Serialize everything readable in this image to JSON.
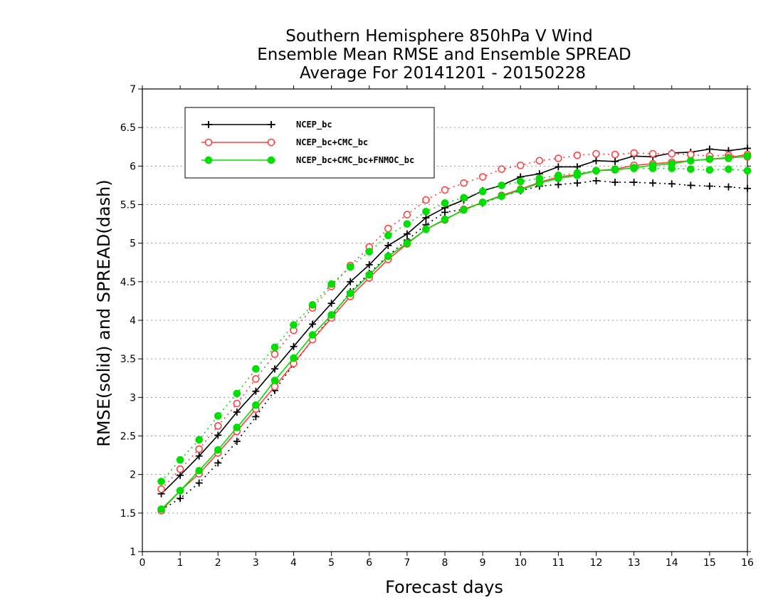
{
  "chart_data": {
    "type": "line",
    "title_lines": [
      "Southern Hemisphere 850hPa V Wind",
      "Ensemble Mean RMSE and Ensemble SPREAD",
      "Average For 20141201 - 20150228"
    ],
    "xlabel": "Forecast days",
    "ylabel": "RMSE(solid) and SPREAD(dash)",
    "xlim": [
      0,
      16
    ],
    "ylim": [
      1,
      7
    ],
    "xticks": [
      "0",
      "1",
      "2",
      "3",
      "4",
      "5",
      "6",
      "7",
      "8",
      "9",
      "10",
      "11",
      "12",
      "13",
      "14",
      "15",
      "16"
    ],
    "yticks": [
      "1",
      "1.5",
      "2",
      "2.5",
      "3",
      "3.5",
      "4",
      "4.5",
      "5",
      "5.5",
      "6",
      "6.5",
      "7"
    ],
    "grid": "horizontal dotted",
    "legend_position": "top-left",
    "x": [
      0.5,
      1,
      1.5,
      2,
      2.5,
      3,
      3.5,
      4,
      4.5,
      5,
      5.5,
      6,
      6.5,
      7,
      7.5,
      8,
      8.5,
      9,
      9.5,
      10,
      10.5,
      11,
      11.5,
      12,
      12.5,
      13,
      13.5,
      14,
      14.5,
      15,
      15.5,
      16
    ],
    "series": [
      {
        "name": "NCEP_bc",
        "color": "#000000",
        "marker": "plus",
        "rmse": [
          1.75,
          1.99,
          2.24,
          2.51,
          2.81,
          3.08,
          3.37,
          3.66,
          3.95,
          4.22,
          4.5,
          4.72,
          4.97,
          5.12,
          5.33,
          5.46,
          5.56,
          5.68,
          5.75,
          5.86,
          5.9,
          5.99,
          5.99,
          6.07,
          6.06,
          6.13,
          6.12,
          6.17,
          6.18,
          6.22,
          6.2,
          6.23
        ],
        "spread": [
          1.54,
          1.69,
          1.89,
          2.15,
          2.43,
          2.75,
          3.09,
          3.43,
          3.75,
          4.05,
          4.37,
          4.61,
          4.84,
          5.04,
          5.24,
          5.4,
          5.44,
          5.52,
          5.61,
          5.68,
          5.74,
          5.76,
          5.78,
          5.81,
          5.79,
          5.79,
          5.78,
          5.77,
          5.75,
          5.74,
          5.73,
          5.71
        ]
      },
      {
        "name": "NCEP_bc+CMC_bc",
        "color": "#ff4040",
        "marker": "open-circle",
        "rmse": [
          1.53,
          1.79,
          2.01,
          2.28,
          2.56,
          2.85,
          3.14,
          3.44,
          3.75,
          4.03,
          4.31,
          4.55,
          4.79,
          4.99,
          5.18,
          5.3,
          5.44,
          5.53,
          5.62,
          5.7,
          5.79,
          5.86,
          5.89,
          5.94,
          5.96,
          6.01,
          6.03,
          6.05,
          6.07,
          6.09,
          6.11,
          6.15
        ],
        "spread": [
          1.81,
          2.07,
          2.33,
          2.63,
          2.92,
          3.24,
          3.56,
          3.87,
          4.16,
          4.44,
          4.71,
          4.95,
          5.19,
          5.37,
          5.56,
          5.69,
          5.78,
          5.86,
          5.96,
          6.01,
          6.07,
          6.1,
          6.14,
          6.16,
          6.15,
          6.17,
          6.16,
          6.16,
          6.15,
          6.13,
          6.14,
          6.12
        ]
      },
      {
        "name": "NCEP_bc+CMC_bc+FNMOC_bc",
        "color": "#00e000",
        "marker": "filled-circle",
        "rmse": [
          1.55,
          1.79,
          2.05,
          2.32,
          2.61,
          2.9,
          3.22,
          3.51,
          3.81,
          4.07,
          4.35,
          4.59,
          4.83,
          5.0,
          5.18,
          5.31,
          5.43,
          5.53,
          5.61,
          5.69,
          5.78,
          5.84,
          5.88,
          5.94,
          5.95,
          5.98,
          6.01,
          6.03,
          6.07,
          6.09,
          6.1,
          6.13
        ],
        "spread": [
          1.91,
          2.19,
          2.45,
          2.76,
          3.05,
          3.37,
          3.65,
          3.94,
          4.2,
          4.47,
          4.69,
          4.89,
          5.1,
          5.25,
          5.41,
          5.52,
          5.59,
          5.67,
          5.75,
          5.8,
          5.84,
          5.88,
          5.91,
          5.94,
          5.96,
          5.97,
          5.97,
          5.97,
          5.96,
          5.95,
          5.96,
          5.94
        ]
      }
    ]
  }
}
